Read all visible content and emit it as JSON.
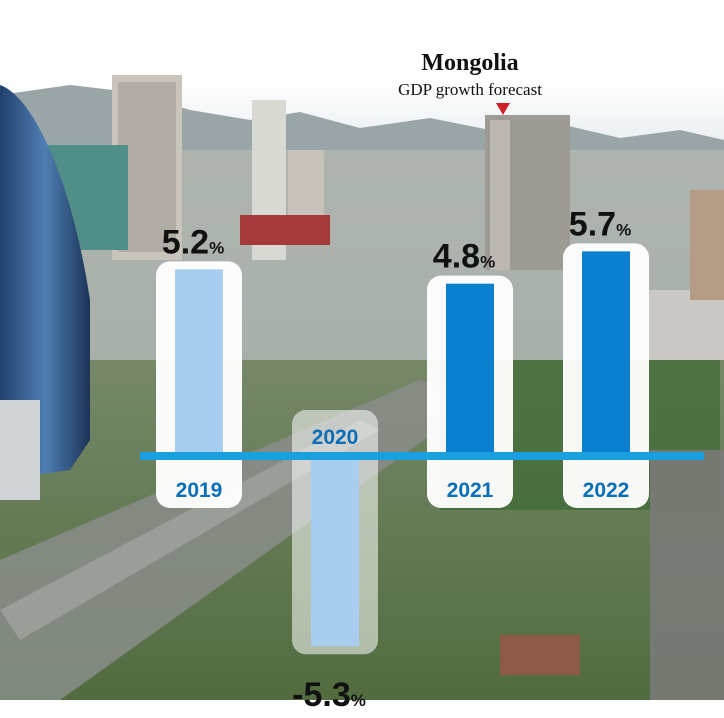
{
  "colors": {
    "bar_light": "#a9cdef",
    "bar_dark": "#0a7fcf",
    "baseline": "#1aa0de",
    "year_text": "#0a6fb8",
    "value_text": "#111111",
    "marker": "#d0202a"
  },
  "chart_data": {
    "type": "bar",
    "title": "Mongolia",
    "subtitle": "GDP growth forecast",
    "categories": [
      "2019",
      "2020",
      "2021",
      "2022"
    ],
    "values": [
      5.2,
      -5.3,
      4.8,
      5.7
    ],
    "value_labels": [
      "5.2",
      "-5.3",
      "4.8",
      "5.7"
    ],
    "unit": "%",
    "bar_colors": [
      "light",
      "light",
      "dark",
      "dark"
    ],
    "xlabel": "",
    "ylabel": "",
    "grid": false,
    "legend": "none"
  }
}
